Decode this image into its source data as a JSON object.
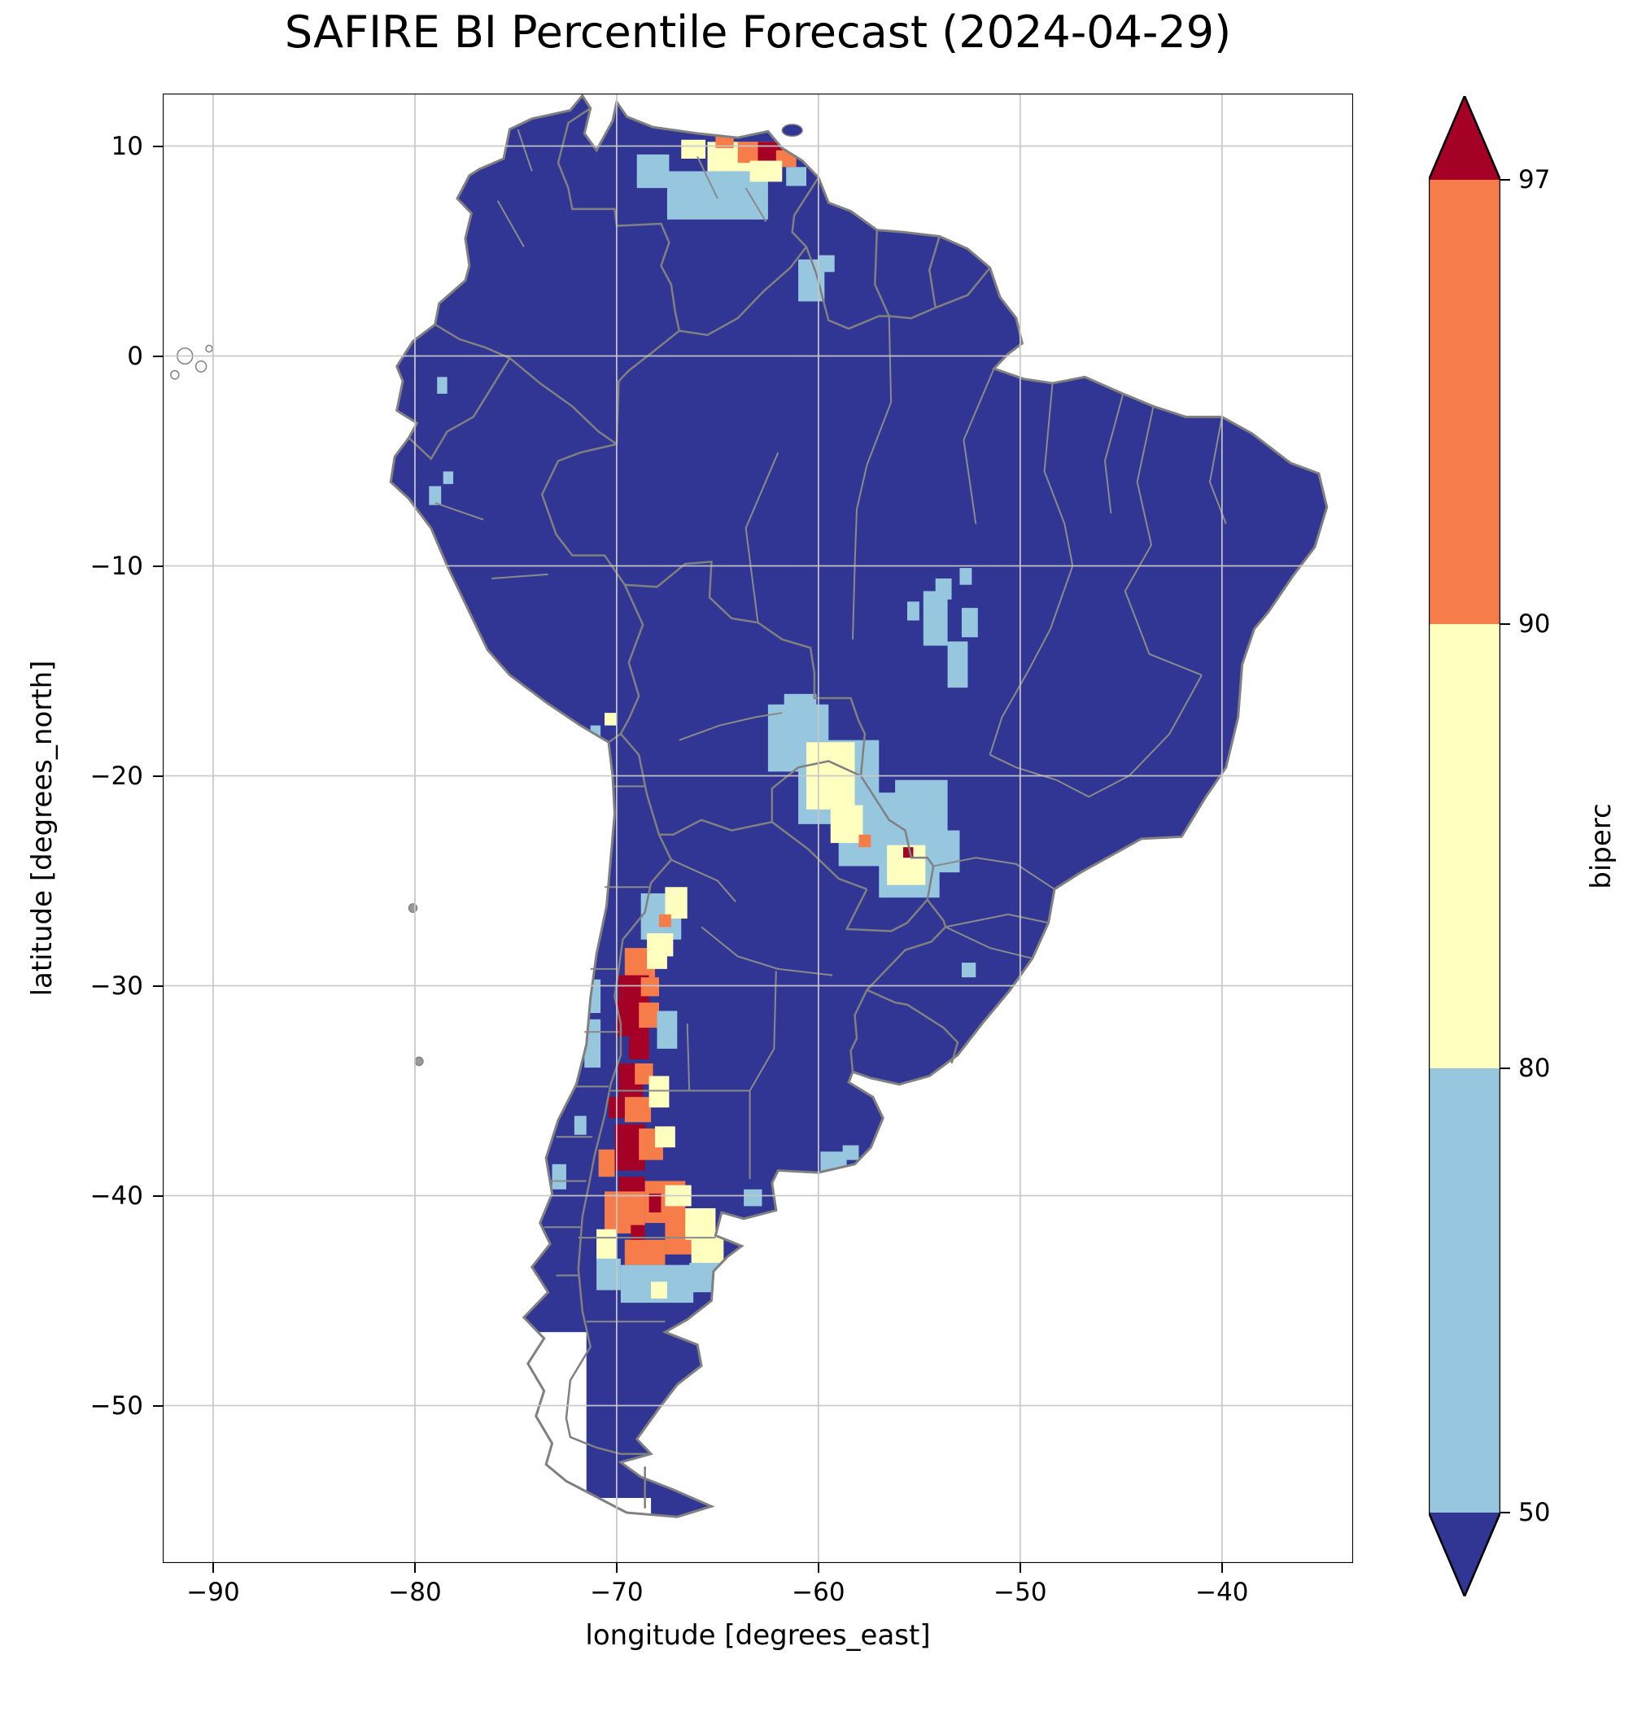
{
  "title": "SAFIRE BI Percentile Forecast (2024-04-29)",
  "axes": {
    "xlabel": "longitude [degrees_east]",
    "ylabel": "latitude [degrees_north]",
    "xticks": [
      {
        "value": -90,
        "label": "−90"
      },
      {
        "value": -80,
        "label": "−80"
      },
      {
        "value": -70,
        "label": "−70"
      },
      {
        "value": -60,
        "label": "−60"
      },
      {
        "value": -50,
        "label": "−50"
      },
      {
        "value": -40,
        "label": "−40"
      }
    ],
    "yticks": [
      {
        "value": 10,
        "label": "10"
      },
      {
        "value": 0,
        "label": "0"
      },
      {
        "value": -10,
        "label": "−10"
      },
      {
        "value": -20,
        "label": "−20"
      },
      {
        "value": -30,
        "label": "−30"
      },
      {
        "value": -40,
        "label": "−40"
      },
      {
        "value": -50,
        "label": "−50"
      }
    ]
  },
  "colorbar": {
    "label": "biperc",
    "ticks": [
      "97",
      "90",
      "80",
      "50"
    ]
  },
  "chart_data": {
    "type": "heatmap",
    "title": "SAFIRE BI Percentile Forecast (2024-04-29)",
    "xlabel": "longitude [degrees_east]",
    "ylabel": "latitude [degrees_north]",
    "xlim": [
      -92.5,
      -33.5
    ],
    "ylim": [
      -57.5,
      12.5
    ],
    "grid": true,
    "legend_position": "right-colorbar",
    "colorbar_label": "biperc",
    "levels": [
      50,
      80,
      90,
      97
    ],
    "palette": [
      "#313695",
      "#96c7df",
      "#ffffbf",
      "#f67d4a",
      "#a50026",
      "#ffffff"
    ],
    "palette_meaning": {
      "0": "below 50th percentile (base land color)",
      "1": "50-80",
      "2": "80-90",
      "3": "90-97",
      "4": "above 97",
      "5": "no data"
    },
    "cells": [
      {
        "x": -76.5,
        "y": -56.5,
        "w": 5.0,
        "h": 10.0,
        "c": 5
      },
      {
        "x": -71.5,
        "y": -56.5,
        "w": 3.2,
        "h": 2.1,
        "c": 5
      },
      {
        "x": -67.5,
        "y": 6.5,
        "w": 5.0,
        "h": 2.3,
        "c": 1
      },
      {
        "x": -69.0,
        "y": 8.0,
        "w": 1.6,
        "h": 1.6,
        "c": 1
      },
      {
        "x": -65.5,
        "y": 8.8,
        "w": 3.5,
        "h": 1.4,
        "c": 2
      },
      {
        "x": -66.8,
        "y": 9.4,
        "w": 1.2,
        "h": 0.9,
        "c": 2
      },
      {
        "x": -64.0,
        "y": 9.2,
        "w": 1.2,
        "h": 1.0,
        "c": 3
      },
      {
        "x": -65.1,
        "y": 9.9,
        "w": 0.9,
        "h": 0.7,
        "c": 3
      },
      {
        "x": -63.0,
        "y": 9.3,
        "w": 1.4,
        "h": 0.9,
        "c": 4
      },
      {
        "x": -62.1,
        "y": 9.0,
        "w": 1.0,
        "h": 0.8,
        "c": 3
      },
      {
        "x": -62.0,
        "y": 9.9,
        "w": 0.9,
        "h": 0.6,
        "c": 4
      },
      {
        "x": -61.6,
        "y": 8.1,
        "w": 1.0,
        "h": 0.9,
        "c": 1
      },
      {
        "x": -63.4,
        "y": 8.3,
        "w": 1.6,
        "h": 1.0,
        "c": 2
      },
      {
        "x": -61.0,
        "y": 2.6,
        "w": 1.3,
        "h": 2.0,
        "c": 1
      },
      {
        "x": -60.0,
        "y": 4.0,
        "w": 0.8,
        "h": 0.8,
        "c": 1
      },
      {
        "x": -54.8,
        "y": -13.8,
        "w": 1.2,
        "h": 2.6,
        "c": 1
      },
      {
        "x": -53.6,
        "y": -15.8,
        "w": 1.0,
        "h": 2.2,
        "c": 1
      },
      {
        "x": -54.2,
        "y": -11.6,
        "w": 0.8,
        "h": 1.0,
        "c": 1
      },
      {
        "x": -52.9,
        "y": -13.4,
        "w": 0.8,
        "h": 1.4,
        "c": 1
      },
      {
        "x": -55.6,
        "y": -12.6,
        "w": 0.6,
        "h": 0.9,
        "c": 1
      },
      {
        "x": -53.0,
        "y": -10.9,
        "w": 0.6,
        "h": 0.8,
        "c": 1
      },
      {
        "x": -62.5,
        "y": -19.8,
        "w": 3.0,
        "h": 3.2,
        "c": 1
      },
      {
        "x": -61.0,
        "y": -22.3,
        "w": 4.0,
        "h": 4.0,
        "c": 1
      },
      {
        "x": -59.0,
        "y": -24.3,
        "w": 4.5,
        "h": 3.5,
        "c": 1
      },
      {
        "x": -57.0,
        "y": -25.8,
        "w": 3.0,
        "h": 2.8,
        "c": 1
      },
      {
        "x": -56.2,
        "y": -22.8,
        "w": 2.6,
        "h": 2.6,
        "c": 1
      },
      {
        "x": -54.8,
        "y": -24.6,
        "w": 1.8,
        "h": 2.0,
        "c": 1
      },
      {
        "x": -61.7,
        "y": -17.7,
        "w": 1.6,
        "h": 1.6,
        "c": 1
      },
      {
        "x": -60.6,
        "y": -21.6,
        "w": 2.4,
        "h": 3.2,
        "c": 2
      },
      {
        "x": -59.4,
        "y": -23.2,
        "w": 1.6,
        "h": 1.8,
        "c": 2
      },
      {
        "x": -56.6,
        "y": -25.2,
        "w": 1.9,
        "h": 1.9,
        "c": 2
      },
      {
        "x": -58.0,
        "y": -23.4,
        "w": 0.6,
        "h": 0.6,
        "c": 3
      },
      {
        "x": -55.8,
        "y": -23.9,
        "w": 0.5,
        "h": 0.5,
        "c": 4
      },
      {
        "x": -70.6,
        "y": -17.6,
        "w": 0.6,
        "h": 0.6,
        "c": 2
      },
      {
        "x": -71.3,
        "y": -18.1,
        "w": 0.5,
        "h": 0.5,
        "c": 1
      },
      {
        "x": -79.3,
        "y": -7.1,
        "w": 0.6,
        "h": 0.9,
        "c": 1
      },
      {
        "x": -78.6,
        "y": -6.1,
        "w": 0.5,
        "h": 0.6,
        "c": 1
      },
      {
        "x": -78.9,
        "y": -1.8,
        "w": 0.5,
        "h": 0.8,
        "c": 1
      },
      {
        "x": -68.8,
        "y": -27.8,
        "w": 2.0,
        "h": 2.2,
        "c": 1
      },
      {
        "x": -67.6,
        "y": -26.8,
        "w": 1.1,
        "h": 1.5,
        "c": 2
      },
      {
        "x": -68.5,
        "y": -28.6,
        "w": 1.3,
        "h": 1.1,
        "c": 2
      },
      {
        "x": -67.9,
        "y": -27.2,
        "w": 0.6,
        "h": 0.6,
        "c": 3
      },
      {
        "x": -69.6,
        "y": -29.6,
        "w": 1.5,
        "h": 1.4,
        "c": 3
      },
      {
        "x": -68.5,
        "y": -29.2,
        "w": 1.0,
        "h": 1.0,
        "c": 2
      },
      {
        "x": -69.9,
        "y": -30.8,
        "w": 1.5,
        "h": 1.3,
        "c": 4
      },
      {
        "x": -68.8,
        "y": -30.5,
        "w": 0.9,
        "h": 0.9,
        "c": 3
      },
      {
        "x": -70.0,
        "y": -32.4,
        "w": 1.6,
        "h": 1.7,
        "c": 4
      },
      {
        "x": -68.9,
        "y": -32.0,
        "w": 1.0,
        "h": 1.2,
        "c": 3
      },
      {
        "x": -69.4,
        "y": -33.5,
        "w": 1.0,
        "h": 1.1,
        "c": 4
      },
      {
        "x": -68.0,
        "y": -33.0,
        "w": 1.0,
        "h": 1.8,
        "c": 1
      },
      {
        "x": -71.6,
        "y": -33.9,
        "w": 0.8,
        "h": 2.3,
        "c": 1
      },
      {
        "x": -71.4,
        "y": -31.3,
        "w": 0.6,
        "h": 1.6,
        "c": 1
      },
      {
        "x": -69.9,
        "y": -35.3,
        "w": 1.2,
        "h": 1.6,
        "c": 4
      },
      {
        "x": -69.1,
        "y": -34.7,
        "w": 0.9,
        "h": 1.0,
        "c": 3
      },
      {
        "x": -69.6,
        "y": -36.5,
        "w": 1.3,
        "h": 1.2,
        "c": 3
      },
      {
        "x": -70.4,
        "y": -36.3,
        "w": 0.8,
        "h": 1.0,
        "c": 4
      },
      {
        "x": -68.4,
        "y": -35.8,
        "w": 1.0,
        "h": 1.5,
        "c": 2
      },
      {
        "x": -70.1,
        "y": -38.8,
        "w": 1.5,
        "h": 2.2,
        "c": 4
      },
      {
        "x": -68.9,
        "y": -38.3,
        "w": 1.2,
        "h": 1.5,
        "c": 3
      },
      {
        "x": -68.1,
        "y": -37.7,
        "w": 1.0,
        "h": 1.0,
        "c": 2
      },
      {
        "x": -70.9,
        "y": -39.1,
        "w": 0.8,
        "h": 1.3,
        "c": 3
      },
      {
        "x": -69.9,
        "y": -40.3,
        "w": 1.3,
        "h": 1.2,
        "c": 4
      },
      {
        "x": -73.2,
        "y": -39.7,
        "w": 0.7,
        "h": 1.2,
        "c": 1
      },
      {
        "x": -72.1,
        "y": -37.1,
        "w": 0.6,
        "h": 0.9,
        "c": 1
      },
      {
        "x": -70.6,
        "y": -41.8,
        "w": 2.0,
        "h": 2.0,
        "c": 3
      },
      {
        "x": -68.6,
        "y": -41.3,
        "w": 2.0,
        "h": 2.0,
        "c": 3
      },
      {
        "x": -67.6,
        "y": -42.8,
        "w": 2.0,
        "h": 1.8,
        "c": 3
      },
      {
        "x": -66.6,
        "y": -42.1,
        "w": 1.5,
        "h": 1.5,
        "c": 2
      },
      {
        "x": -69.6,
        "y": -43.3,
        "w": 2.0,
        "h": 1.2,
        "c": 3
      },
      {
        "x": -66.3,
        "y": -43.5,
        "w": 1.6,
        "h": 1.8,
        "c": 2
      },
      {
        "x": -71.0,
        "y": -43.1,
        "w": 1.0,
        "h": 1.5,
        "c": 2
      },
      {
        "x": -67.6,
        "y": -40.5,
        "w": 1.3,
        "h": 1.0,
        "c": 2
      },
      {
        "x": -69.3,
        "y": -42.1,
        "w": 0.7,
        "h": 0.7,
        "c": 4
      },
      {
        "x": -68.4,
        "y": -40.8,
        "w": 0.6,
        "h": 0.9,
        "c": 4
      },
      {
        "x": -69.8,
        "y": -45.1,
        "w": 3.6,
        "h": 1.8,
        "c": 1
      },
      {
        "x": -66.4,
        "y": -44.6,
        "w": 1.6,
        "h": 1.4,
        "c": 1
      },
      {
        "x": -71.0,
        "y": -44.5,
        "w": 1.2,
        "h": 1.5,
        "c": 1
      },
      {
        "x": -68.3,
        "y": -44.9,
        "w": 0.8,
        "h": 0.8,
        "c": 2
      },
      {
        "x": -59.9,
        "y": -38.9,
        "w": 1.3,
        "h": 1.0,
        "c": 1
      },
      {
        "x": -58.8,
        "y": -38.3,
        "w": 0.8,
        "h": 0.7,
        "c": 1
      },
      {
        "x": -63.7,
        "y": -40.5,
        "w": 0.9,
        "h": 0.8,
        "c": 1
      },
      {
        "x": -52.9,
        "y": -29.6,
        "w": 0.7,
        "h": 0.7,
        "c": 1
      }
    ]
  }
}
